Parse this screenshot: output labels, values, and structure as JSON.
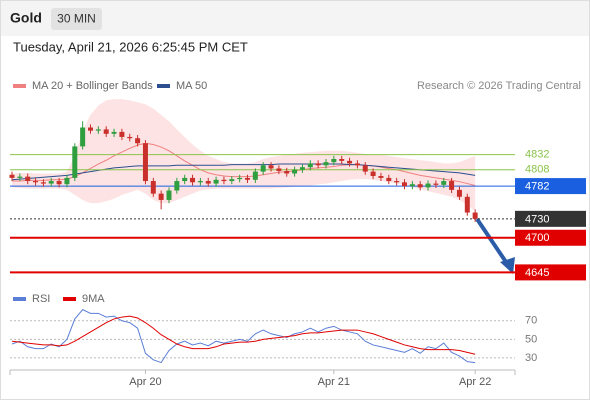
{
  "chart_data": {
    "type": "candlestick",
    "title": "Gold",
    "timeframe": "30 MIN",
    "subtitle": "Tuesday, April 21, 2026 6:25:45 PM CET",
    "source": "Research © 2026 Trading Central",
    "categories": [
      null,
      null,
      null,
      null,
      null,
      null,
      null,
      null,
      null,
      null,
      null,
      null,
      null,
      null,
      null,
      null,
      null,
      "Apr 20",
      null,
      null,
      null,
      null,
      null,
      null,
      null,
      null,
      null,
      null,
      null,
      null,
      null,
      null,
      null,
      null,
      null,
      null,
      null,
      null,
      null,
      null,
      null,
      "Apr 21",
      null,
      null,
      null,
      null,
      null,
      null,
      null,
      null,
      null,
      null,
      null,
      null,
      null,
      null,
      null,
      null,
      null,
      "Apr 22"
    ],
    "up_color": "#2e9e3e",
    "down_color": "#c9302c",
    "open": [
      4800,
      4795,
      4797,
      4790,
      4788,
      4786,
      4790,
      4785,
      4795,
      4845,
      4875,
      4870,
      4872,
      4865,
      4868,
      4860,
      4858,
      4850,
      4790,
      4770,
      4760,
      4775,
      4790,
      4795,
      4788,
      4790,
      4786,
      4792,
      4790,
      4793,
      4795,
      4792,
      4805,
      4815,
      4810,
      4806,
      4802,
      4808,
      4812,
      4818,
      4815,
      4820,
      4825,
      4822,
      4818,
      4815,
      4805,
      4798,
      4795,
      4790,
      4788,
      4782,
      4785,
      4780,
      4786,
      4784,
      4790,
      4776,
      4765,
      4740
    ],
    "high": [
      4805,
      4802,
      4802,
      4795,
      4793,
      4795,
      4795,
      4800,
      4850,
      4885,
      4880,
      4877,
      4877,
      4873,
      4873,
      4865,
      4863,
      4855,
      4795,
      4775,
      4780,
      4795,
      4800,
      4800,
      4795,
      4795,
      4797,
      4797,
      4798,
      4800,
      4800,
      4810,
      4820,
      4820,
      4815,
      4811,
      4813,
      4817,
      4823,
      4823,
      4825,
      4830,
      4830,
      4827,
      4823,
      4820,
      4810,
      4803,
      4800,
      4795,
      4793,
      4790,
      4790,
      4791,
      4791,
      4795,
      4795,
      4781,
      4770,
      4745
    ],
    "low": [
      4790,
      4790,
      4785,
      4783,
      4781,
      4781,
      4780,
      4780,
      4790,
      4840,
      4865,
      4865,
      4860,
      4860,
      4855,
      4853,
      4845,
      4785,
      4765,
      4745,
      4755,
      4770,
      4785,
      4783,
      4783,
      4781,
      4781,
      4785,
      4785,
      4788,
      4787,
      4787,
      4800,
      4805,
      4801,
      4797,
      4797,
      4803,
      4807,
      4810,
      4810,
      4815,
      4817,
      4813,
      4810,
      4800,
      4793,
      4790,
      4785,
      4783,
      4777,
      4777,
      4775,
      4775,
      4779,
      4779,
      4771,
      4760,
      4735,
      4725
    ],
    "close": [
      4795,
      4797,
      4790,
      4788,
      4786,
      4790,
      4785,
      4795,
      4845,
      4875,
      4870,
      4872,
      4865,
      4868,
      4860,
      4858,
      4850,
      4790,
      4770,
      4760,
      4775,
      4790,
      4795,
      4788,
      4790,
      4786,
      4792,
      4790,
      4793,
      4795,
      4792,
      4805,
      4815,
      4810,
      4806,
      4802,
      4808,
      4812,
      4818,
      4815,
      4820,
      4825,
      4822,
      4818,
      4815,
      4805,
      4798,
      4795,
      4790,
      4788,
      4782,
      4785,
      4780,
      4786,
      4784,
      4790,
      4776,
      4765,
      4740,
      4730
    ],
    "indicators": [
      {
        "name": "MA 20 + Bollinger Bands",
        "color": "#f08080",
        "band_color": "#fde3e3",
        "values": [
          4790,
          4790,
          4791,
          4791,
          4791,
          4792,
          4792,
          4793,
          4797,
          4803,
          4810,
          4817,
          4823,
          4830,
          4836,
          4842,
          4847,
          4850,
          4848,
          4844,
          4838,
          4830,
          4822,
          4815,
          4808,
          4803,
          4800,
          4798,
          4797,
          4797,
          4797,
          4798,
          4800,
          4802,
          4804,
          4805,
          4806,
          4808,
          4810,
          4811,
          4812,
          4813,
          4815,
          4816,
          4816,
          4815,
          4814,
          4812,
          4810,
          4808,
          4805,
          4802,
          4799,
          4797,
          4795,
          4793,
          4791,
          4789,
          4786,
          4783
        ],
        "upper": [
          4802,
          4803,
          4803,
          4802,
          4802,
          4802,
          4802,
          4805,
          4830,
          4870,
          4895,
          4910,
          4918,
          4920,
          4920,
          4918,
          4915,
          4912,
          4905,
          4895,
          4885,
          4872,
          4860,
          4848,
          4838,
          4830,
          4825,
          4820,
          4818,
          4818,
          4818,
          4820,
          4825,
          4828,
          4830,
          4832,
          4833,
          4835,
          4836,
          4837,
          4838,
          4838,
          4838,
          4837,
          4835,
          4833,
          4832,
          4832,
          4830,
          4828,
          4826,
          4825,
          4823,
          4822,
          4820,
          4818,
          4818,
          4820,
          4825,
          4830
        ],
        "lower": [
          4780,
          4779,
          4778,
          4778,
          4778,
          4778,
          4778,
          4776,
          4768,
          4760,
          4755,
          4755,
          4758,
          4762,
          4768,
          4772,
          4776,
          4770,
          4760,
          4755,
          4755,
          4760,
          4765,
          4770,
          4775,
          4777,
          4778,
          4778,
          4778,
          4778,
          4778,
          4778,
          4778,
          4778,
          4779,
          4780,
          4781,
          4782,
          4783,
          4785,
          4786,
          4788,
          4790,
          4792,
          4793,
          4793,
          4792,
          4790,
          4788,
          4786,
          4784,
          4780,
          4777,
          4774,
          4771,
          4768,
          4765,
          4760,
          4752,
          4742
        ]
      },
      {
        "name": "MA 50",
        "color": "#2b4f8f",
        "values": [
          4792,
          4793,
          4794,
          4795,
          4796,
          4797,
          4798,
          4799,
          4801,
          4803,
          4805,
          4807,
          4809,
          4811,
          4812,
          4813,
          4814,
          4814,
          4814,
          4814,
          4814,
          4815,
          4815,
          4815,
          4815,
          4815,
          4815,
          4815,
          4816,
          4816,
          4816,
          4816,
          4816,
          4816,
          4817,
          4817,
          4817,
          4817,
          4817,
          4817,
          4817,
          4817,
          4817,
          4816,
          4816,
          4815,
          4814,
          4813,
          4812,
          4811,
          4810,
          4809,
          4808,
          4807,
          4806,
          4805,
          4804,
          4803,
          4801,
          4799
        ]
      }
    ],
    "ylim": [
      4625,
      4925
    ],
    "levels": [
      {
        "value": 4832,
        "color": "#8bc34a",
        "line": "solid",
        "box": false
      },
      {
        "value": 4808,
        "color": "#8bc34a",
        "line": "solid",
        "box": false
      },
      {
        "value": 4782,
        "color": "#1a5fe0",
        "line": "solid",
        "box": true
      },
      {
        "value": 4730,
        "color": "#333333",
        "line": "dotted",
        "box": true
      },
      {
        "value": 4700,
        "color": "#e00000",
        "line": "solid",
        "box": true
      },
      {
        "value": 4645,
        "color": "#e00000",
        "line": "solid",
        "box": true
      }
    ],
    "rsi": {
      "ylim": [
        17,
        87
      ],
      "yticks": [
        70,
        50,
        30
      ],
      "series": [
        {
          "name": "RSI",
          "color": "#5b7fd6",
          "values": [
            45,
            48,
            42,
            40,
            40,
            45,
            42,
            50,
            72,
            82,
            78,
            78,
            74,
            75,
            70,
            68,
            62,
            35,
            28,
            25,
            38,
            45,
            48,
            44,
            46,
            43,
            48,
            46,
            48,
            50,
            48,
            56,
            60,
            56,
            54,
            52,
            56,
            58,
            62,
            58,
            62,
            64,
            60,
            58,
            56,
            48,
            44,
            42,
            40,
            38,
            36,
            40,
            35,
            42,
            40,
            46,
            36,
            32,
            26,
            25
          ]
        },
        {
          "name": "9MA",
          "color": "#e00000",
          "values": [
            48,
            47,
            46,
            45,
            44,
            44,
            43,
            44,
            48,
            53,
            58,
            63,
            68,
            72,
            74,
            75,
            73,
            68,
            62,
            55,
            50,
            45,
            42,
            40,
            40,
            40,
            42,
            45,
            46,
            47,
            47,
            48,
            50,
            51,
            52,
            53,
            54,
            56,
            57,
            57,
            58,
            59,
            60,
            60,
            60,
            58,
            56,
            53,
            50,
            47,
            44,
            42,
            40,
            39,
            39,
            39,
            39,
            38,
            36,
            34
          ]
        }
      ]
    }
  }
}
